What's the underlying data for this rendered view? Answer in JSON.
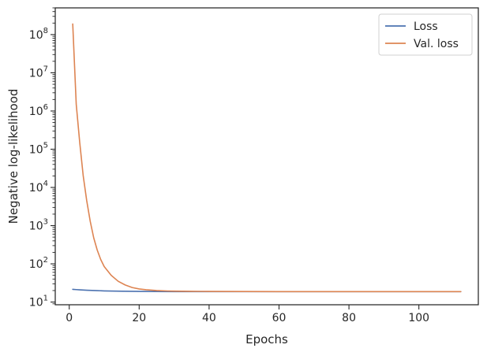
{
  "chart_data": {
    "type": "line",
    "xlabel": "Epochs",
    "ylabel": "Negative log-likelihood",
    "xscale": "linear",
    "yscale": "log",
    "xlim": [
      -4,
      117
    ],
    "ylim": [
      8.5,
      500000000
    ],
    "grid": false,
    "legend": "top-right",
    "x_ticks": [
      0,
      20,
      40,
      60,
      80,
      100
    ],
    "x_tick_labels": [
      "0",
      "20",
      "40",
      "60",
      "80",
      "100"
    ],
    "y_ticks": [
      10,
      100,
      1000,
      10000,
      100000,
      1000000,
      10000000,
      100000000
    ],
    "y_tick_labels": [
      {
        "base": "10",
        "exp": "1"
      },
      {
        "base": "10",
        "exp": "2"
      },
      {
        "base": "10",
        "exp": "3"
      },
      {
        "base": "10",
        "exp": "4"
      },
      {
        "base": "10",
        "exp": "5"
      },
      {
        "base": "10",
        "exp": "6"
      },
      {
        "base": "10",
        "exp": "7"
      },
      {
        "base": "10",
        "exp": "8"
      }
    ],
    "series": [
      {
        "name": "Loss",
        "color": "#4c72b0",
        "x": [
          1,
          2,
          3,
          5,
          8,
          10,
          15,
          20,
          25,
          30,
          40,
          60,
          80,
          100,
          112
        ],
        "y": [
          21.5,
          21.2,
          20.9,
          20.4,
          19.9,
          19.6,
          19.2,
          19.0,
          18.9,
          18.8,
          18.7,
          18.7,
          18.7,
          18.7,
          18.7
        ]
      },
      {
        "name": "Val. loss",
        "color": "#dd8452",
        "x": [
          1,
          2,
          3,
          4,
          5,
          6,
          7,
          8,
          9,
          10,
          12,
          14,
          16,
          18,
          20,
          22,
          25,
          28,
          30,
          35,
          40,
          50,
          60,
          80,
          100,
          112
        ],
        "y": [
          190000000,
          1500000,
          150000,
          20000,
          4500,
          1300,
          480,
          230,
          130,
          85,
          50,
          35,
          28,
          24,
          22,
          21,
          20,
          19.5,
          19.3,
          19.1,
          19.0,
          18.9,
          18.8,
          18.8,
          18.8,
          18.8
        ]
      }
    ]
  }
}
